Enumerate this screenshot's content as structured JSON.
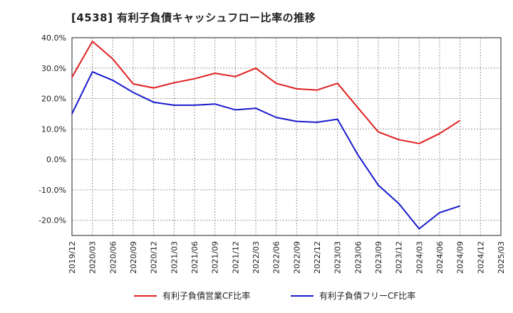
{
  "title": "[4538]  有利子負債キャッシュフロー比率の推移",
  "chart_data": {
    "type": "line",
    "title": "[4538]  有利子負債キャッシュフロー比率の推移",
    "ylim": [
      -25,
      40
    ],
    "yticks": [
      40,
      30,
      20,
      10,
      0,
      -10,
      -20
    ],
    "ytick_labels": [
      "40.0%",
      "30.0%",
      "20.0%",
      "10.0%",
      "0.0%",
      "-10.0%",
      "-20.0%"
    ],
    "x_tick_labels": [
      "2019/12",
      "2020/03",
      "2020/06",
      "2020/09",
      "2020/12",
      "2021/03",
      "2021/06",
      "2021/09",
      "2021/12",
      "2022/03",
      "2022/06",
      "2022/09",
      "2022/12",
      "2023/03",
      "2023/06",
      "2023/09",
      "2023/12",
      "2024/03",
      "2024/06",
      "2024/09",
      "2024/12",
      "2025/03"
    ],
    "grid": true,
    "legend_position": "bottom",
    "series": [
      {
        "name": "有利子負債営業CF比率",
        "color": "#e02020",
        "values": [
          27.0,
          38.8,
          33.0,
          24.8,
          23.5,
          25.2,
          26.5,
          28.3,
          27.2,
          30.0,
          25.0,
          23.2,
          22.8,
          25.0,
          17.0,
          9.0,
          6.5,
          5.2,
          8.5,
          12.8,
          null,
          null
        ]
      },
      {
        "name": "有利子負債フリーCF比率",
        "color": "#1a1acd",
        "values": [
          15.0,
          28.8,
          26.0,
          22.0,
          18.8,
          17.8,
          17.8,
          18.2,
          16.3,
          16.8,
          13.8,
          12.5,
          12.2,
          13.2,
          1.5,
          -8.5,
          -14.5,
          -22.8,
          -17.5,
          -15.3,
          null,
          null
        ]
      }
    ]
  }
}
